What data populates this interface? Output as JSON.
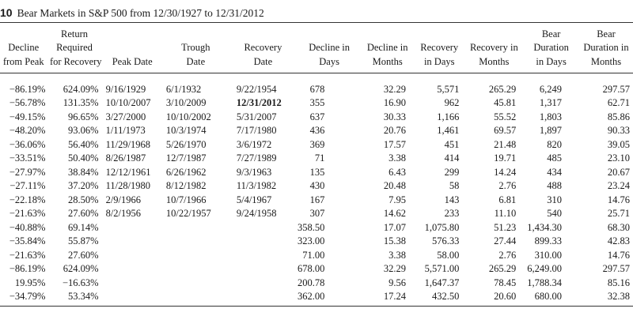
{
  "table": {
    "number": "10",
    "title": "Bear Markets in S&P 500 from 12/30/1927 to 12/31/2012",
    "headers": [
      [
        "Decline",
        "from Peak"
      ],
      [
        "Return",
        "Required",
        "for Recovery"
      ],
      [
        "Peak Date"
      ],
      [
        "Trough",
        "Date"
      ],
      [
        "Recovery",
        "Date"
      ],
      [
        "Decline in",
        "Days"
      ],
      [
        "Decline in",
        "Months"
      ],
      [
        "Recovery",
        "in Days"
      ],
      [
        "Recovery in",
        "Months"
      ],
      [
        "Bear",
        "Duration",
        "in Days"
      ],
      [
        "Bear",
        "Duration in",
        "Months"
      ]
    ],
    "rows": [
      [
        "−86.19%",
        "624.09%",
        "9/16/1929",
        "6/1/1932",
        "9/22/1954",
        "678",
        "32.29",
        "5,571",
        "265.29",
        "6,249",
        "297.57"
      ],
      [
        "−56.78%",
        "131.35%",
        "10/10/2007",
        "3/10/2009",
        "12/31/2012",
        "355",
        "16.90",
        "962",
        "45.81",
        "1,317",
        "62.71"
      ],
      [
        "−49.15%",
        "96.65%",
        "3/27/2000",
        "10/10/2002",
        "5/31/2007",
        "637",
        "30.33",
        "1,166",
        "55.52",
        "1,803",
        "85.86"
      ],
      [
        "−48.20%",
        "93.06%",
        "1/11/1973",
        "10/3/1974",
        "7/17/1980",
        "436",
        "20.76",
        "1,461",
        "69.57",
        "1,897",
        "90.33"
      ],
      [
        "−36.06%",
        "56.40%",
        "11/29/1968",
        "5/26/1970",
        "3/6/1972",
        "369",
        "17.57",
        "451",
        "21.48",
        "820",
        "39.05"
      ],
      [
        "−33.51%",
        "50.40%",
        "8/26/1987",
        "12/7/1987",
        "7/27/1989",
        "71",
        "3.38",
        "414",
        "19.71",
        "485",
        "23.10"
      ],
      [
        "−27.97%",
        "38.84%",
        "12/12/1961",
        "6/26/1962",
        "9/3/1963",
        "135",
        "6.43",
        "299",
        "14.24",
        "434",
        "20.67"
      ],
      [
        "−27.11%",
        "37.20%",
        "11/28/1980",
        "8/12/1982",
        "11/3/1982",
        "430",
        "20.48",
        "58",
        "2.76",
        "488",
        "23.24"
      ],
      [
        "−22.18%",
        "28.50%",
        "2/9/1966",
        "10/7/1966",
        "5/4/1967",
        "167",
        "7.95",
        "143",
        "6.81",
        "310",
        "14.76"
      ],
      [
        "−21.63%",
        "27.60%",
        "8/2/1956",
        "10/22/1957",
        "9/24/1958",
        "307",
        "14.62",
        "233",
        "11.10",
        "540",
        "25.71"
      ],
      [
        "−40.88%",
        "69.14%",
        "",
        "",
        "",
        "358.50",
        "17.07",
        "1,075.80",
        "51.23",
        "1,434.30",
        "68.30"
      ],
      [
        "−35.84%",
        "55.87%",
        "",
        "",
        "",
        "323.00",
        "15.38",
        "576.33",
        "27.44",
        "899.33",
        "42.83"
      ],
      [
        "−21.63%",
        "27.60%",
        "",
        "",
        "",
        "71.00",
        "3.38",
        "58.00",
        "2.76",
        "310.00",
        "14.76"
      ],
      [
        "−86.19%",
        "624.09%",
        "",
        "",
        "",
        "678.00",
        "32.29",
        "5,571.00",
        "265.29",
        "6,249.00",
        "297.57"
      ],
      [
        "19.95%",
        "−16.63%",
        "",
        "",
        "",
        "200.78",
        "9.56",
        "1,647.37",
        "78.45",
        "1,788.34",
        "85.16"
      ],
      [
        "−34.79%",
        "53.34%",
        "",
        "",
        "",
        "362.00",
        "17.24",
        "432.50",
        "20.60",
        "680.00",
        "32.38"
      ]
    ]
  }
}
